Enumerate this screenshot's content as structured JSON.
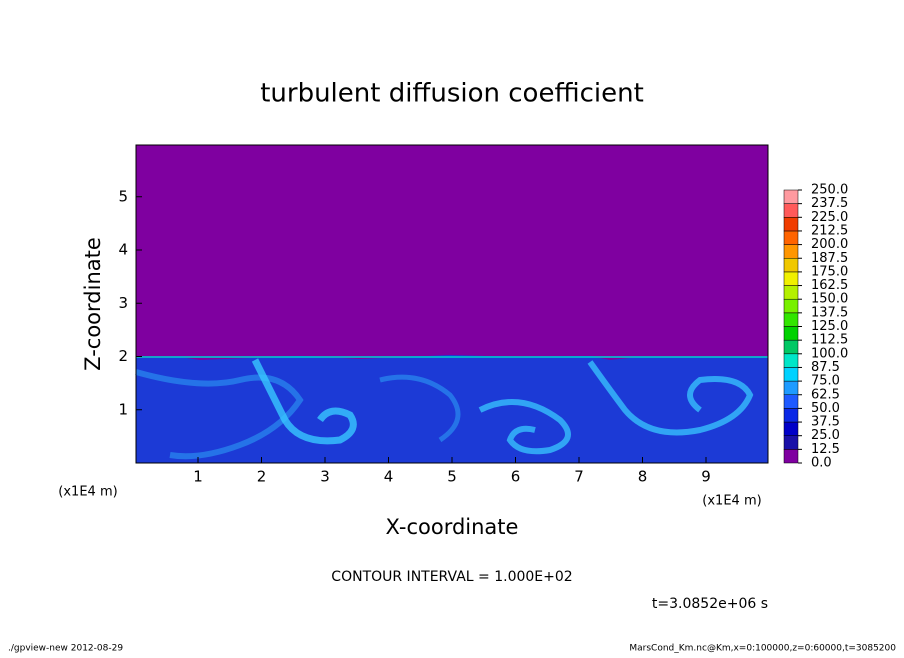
{
  "chart_data": {
    "type": "contour",
    "title": "turbulent diffusion coefficient",
    "xlabel": "X-coordinate",
    "ylabel": "Z-coordinate",
    "xunit": "(x1E4 m)",
    "yunit": "(x1E4 m)",
    "xlim": [
      0,
      10
    ],
    "xticks": [
      1,
      2,
      3,
      4,
      5,
      6,
      7,
      8,
      9
    ],
    "ylim": [
      0,
      6
    ],
    "yticks": [
      1,
      2,
      3,
      4,
      5
    ],
    "levels": [
      {
        "value": 0,
        "label": "0.0"
      },
      12.5,
      {
        "value": 25,
        "label": "25.0"
      },
      37.5,
      {
        "value": 50,
        "label": "50.0"
      },
      62.5,
      {
        "value": 75,
        "label": "75.0"
      },
      87.5,
      {
        "value": 100,
        "label": "100.0"
      },
      112.5,
      {
        "value": 125,
        "label": "125.0"
      },
      137.5,
      {
        "value": 150,
        "label": "150.0"
      },
      162.5,
      {
        "value": 175,
        "label": "175.0"
      },
      187.5,
      {
        "value": 200,
        "label": "200.0"
      },
      212.5,
      {
        "value": 225,
        "label": "225.0"
      },
      237.5,
      {
        "value": 250,
        "label": "250.0"
      }
    ],
    "level_colors": [
      "#7f00a0",
      "#1a10a8",
      "#0000c8",
      "#0a28e6",
      "#1e5aff",
      "#1e9bff",
      "#00d2ff",
      "#00e6c8",
      "#00c864",
      "#00d200",
      "#32e600",
      "#78f000",
      "#b4f000",
      "#f0f000",
      "#f0c800",
      "#ff9600",
      "#ff6400",
      "#f03c00",
      "#ff5a5a",
      "#ff9aa0"
    ],
    "contour_interval": "CONTOUR INTERVAL = 1.000E+02",
    "time_label": "t=3.0852e+06 s",
    "footer_left": "./gpview-new  2012-08-29",
    "footer_right": "MarsCond_Km.nc@Km,x=0:100000,z=0:60000,t=3085200"
  }
}
